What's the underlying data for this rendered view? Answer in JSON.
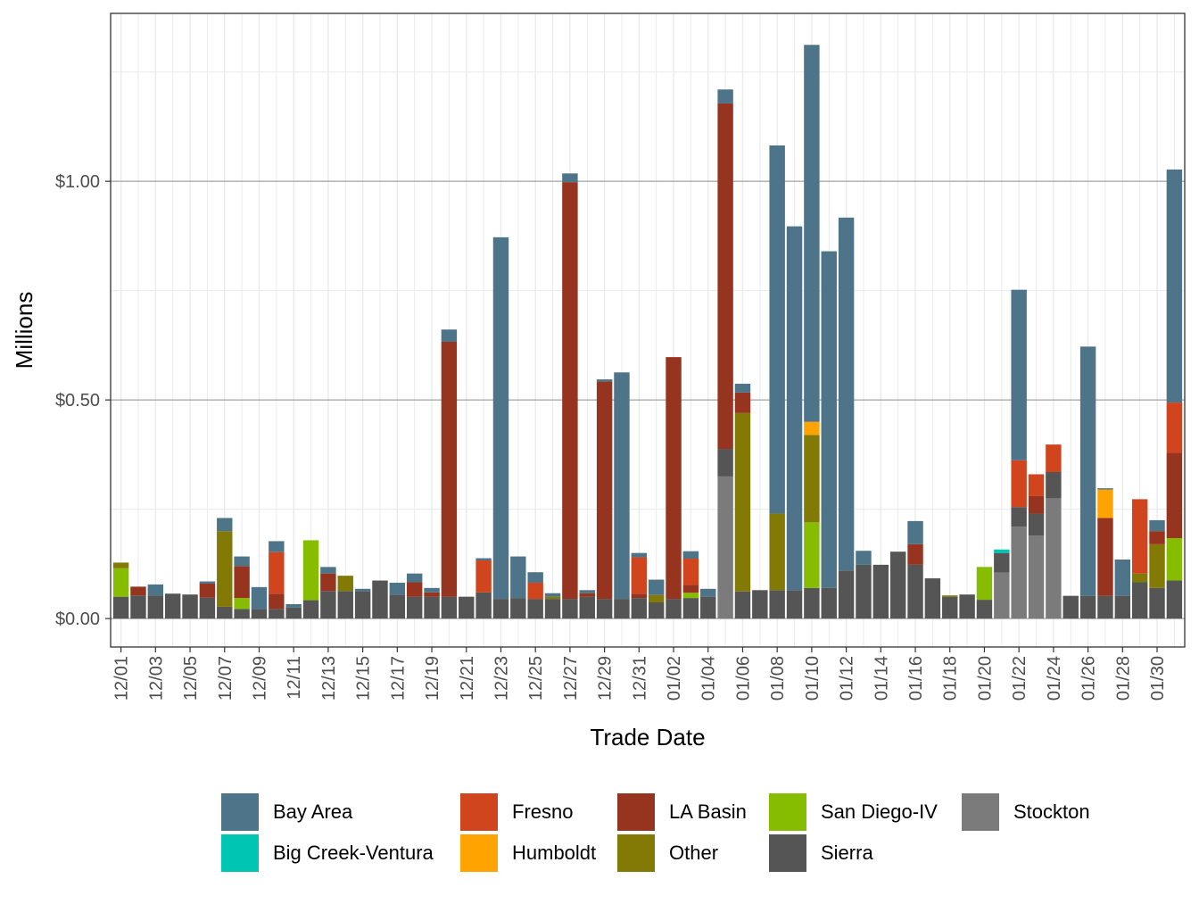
{
  "chart_data": {
    "type": "stacked_bar",
    "x_label": "Trade Date",
    "y_label": "Millions",
    "categories": [
      "12/01",
      null,
      "12/03",
      null,
      "12/05",
      null,
      "12/07",
      null,
      "12/09",
      null,
      "12/11",
      null,
      "12/13",
      null,
      "12/15",
      null,
      "12/17",
      null,
      "12/19",
      null,
      "12/21",
      null,
      "12/23",
      null,
      "12/25",
      null,
      "12/27",
      null,
      "12/29",
      null,
      "12/31",
      null,
      "01/02",
      null,
      "01/04",
      null,
      "01/06",
      null,
      "01/08",
      null,
      "01/10",
      null,
      "01/12",
      null,
      "01/14",
      null,
      "01/16",
      null,
      "01/18",
      null,
      "01/20",
      null,
      "01/22",
      null,
      "01/24",
      null,
      "01/26",
      null,
      "01/28",
      null,
      "01/30",
      null
    ],
    "ylim": [
      -0.065,
      1.384
    ],
    "yticks": [
      {
        "value": 0,
        "label": "$0.00"
      },
      {
        "value": 0.5,
        "label": "$0.50"
      },
      {
        "value": 1,
        "label": "$1.00"
      }
    ],
    "grid": true,
    "legend": "bottom",
    "series": [
      {
        "name": "Bay Area",
        "color": "#4e7489",
        "values": [
          0,
          0,
          0.025,
          0,
          0,
          0.005,
          0.03,
          0.022,
          0.05,
          0.025,
          0.008,
          0,
          0.015,
          0,
          0.005,
          0,
          0.027,
          0.02,
          0.01,
          0.028,
          0,
          0.005,
          0.827,
          0.095,
          0.024,
          0.008,
          0.02,
          0.007,
          0.005,
          0.518,
          0.01,
          0.035,
          0,
          0.017,
          0.018,
          0.032,
          0.02,
          0,
          0.842,
          0.832,
          0.862,
          0.77,
          0.807,
          0.032,
          0,
          0,
          0.053,
          0,
          0,
          0,
          0,
          0,
          0.39,
          0,
          0,
          0,
          0.57,
          0.003,
          0.083,
          0,
          0.025,
          0.533
        ]
      },
      {
        "name": "Big Creek-Ventura",
        "color": "#00c5b2",
        "values": [
          0,
          0,
          0,
          0,
          0,
          0,
          0,
          0,
          0,
          0,
          0,
          0,
          0,
          0,
          0,
          0,
          0,
          0,
          0,
          0,
          0,
          0,
          0,
          0,
          0,
          0,
          0,
          0,
          0,
          0,
          0,
          0,
          0,
          0,
          0,
          0,
          0,
          0,
          0,
          0,
          0,
          0,
          0,
          0,
          0,
          0,
          0,
          0,
          0,
          0,
          0,
          0.008,
          0,
          0,
          0,
          0,
          0,
          0,
          0,
          0,
          0,
          0
        ]
      },
      {
        "name": "Fresno",
        "color": "#d1451e",
        "values": [
          0,
          0,
          0,
          0,
          0,
          0,
          0,
          0,
          0,
          0.095,
          0,
          0,
          0,
          0,
          0,
          0,
          0,
          0,
          0,
          0,
          0,
          0.073,
          0,
          0,
          0.037,
          0,
          0,
          0,
          0,
          0,
          0.083,
          0,
          0,
          0.06,
          0,
          0,
          0,
          0,
          0,
          0,
          0,
          0,
          0,
          0,
          0,
          0,
          0,
          0,
          0,
          0,
          0,
          0,
          0.107,
          0.05,
          0.063,
          0,
          0,
          0,
          0,
          0.17,
          0,
          0.115
        ]
      },
      {
        "name": "Humboldt",
        "color": "#ffa300",
        "values": [
          0,
          0,
          0,
          0,
          0,
          0,
          0,
          0,
          0,
          0,
          0,
          0,
          0,
          0,
          0,
          0,
          0,
          0,
          0,
          0,
          0,
          0,
          0,
          0,
          0,
          0,
          0,
          0,
          0,
          0,
          0,
          0,
          0,
          0,
          0,
          0,
          0,
          0,
          0,
          0,
          0.03,
          0,
          0,
          0,
          0,
          0,
          0,
          0,
          0,
          0,
          0,
          0,
          0,
          0,
          0,
          0,
          0,
          0.065,
          0,
          0,
          0,
          0
        ]
      },
      {
        "name": "LA Basin",
        "color": "#97341f",
        "values": [
          0,
          0.02,
          0,
          0,
          0,
          0.032,
          0,
          0.073,
          0,
          0.035,
          0,
          0,
          0.04,
          0,
          0,
          0,
          0,
          0.033,
          0.01,
          0.583,
          0,
          0,
          0,
          0,
          0,
          0,
          0.953,
          0.008,
          0.497,
          0,
          0.01,
          0,
          0.553,
          0.018,
          0,
          0.79,
          0.047,
          0,
          0,
          0,
          0,
          0,
          0,
          0,
          0,
          0,
          0.047,
          0,
          0,
          0,
          0,
          0,
          0,
          0.04,
          0,
          0,
          0,
          0.178,
          0,
          0,
          0.03,
          0.195
        ]
      },
      {
        "name": "Other",
        "color": "#837a06",
        "values": [
          0.013,
          0,
          0,
          0,
          0,
          0,
          0.173,
          0,
          0,
          0,
          0,
          0,
          0,
          0.035,
          0,
          0,
          0,
          0,
          0,
          0,
          0,
          0,
          0,
          0,
          0,
          0.005,
          0,
          0,
          0,
          0,
          0,
          0.017,
          0,
          0,
          0,
          0,
          0.408,
          0,
          0.175,
          0,
          0.2,
          0,
          0,
          0,
          0,
          0,
          0,
          0,
          0.003,
          0,
          0,
          0,
          0,
          0,
          0,
          0,
          0,
          0,
          0,
          0.02,
          0.1,
          0
        ]
      },
      {
        "name": "San Diego-IV",
        "color": "#87bd00",
        "values": [
          0.065,
          0,
          0,
          0,
          0,
          0,
          0,
          0.025,
          0,
          0,
          0,
          0.137,
          0,
          0,
          0,
          0,
          0,
          0,
          0,
          0,
          0,
          0,
          0,
          0,
          0,
          0,
          0,
          0,
          0,
          0,
          0,
          0,
          0,
          0.012,
          0,
          0,
          0,
          0,
          0,
          0,
          0.15,
          0,
          0,
          0,
          0,
          0,
          0,
          0,
          0,
          0,
          0.075,
          0,
          0,
          0,
          0,
          0,
          0,
          0,
          0,
          0,
          0,
          0.097
        ]
      },
      {
        "name": "Sierra",
        "color": "#555555",
        "values": [
          0.05,
          0.053,
          0.053,
          0.057,
          0.055,
          0.048,
          0.027,
          0.022,
          0.022,
          0.022,
          0.025,
          0.042,
          0.063,
          0.063,
          0.063,
          0.087,
          0.055,
          0.05,
          0.05,
          0.05,
          0.05,
          0.06,
          0.045,
          0.047,
          0.045,
          0.045,
          0.045,
          0.05,
          0.045,
          0.045,
          0.047,
          0.037,
          0.045,
          0.047,
          0.05,
          0.063,
          0.062,
          0.065,
          0.065,
          0.065,
          0.07,
          0.07,
          0.11,
          0.123,
          0.123,
          0.153,
          0.123,
          0.092,
          0.05,
          0.055,
          0.043,
          0.045,
          0.045,
          0.05,
          0.06,
          0.052,
          0.052,
          0.052,
          0.052,
          0.083,
          0.07,
          0.087
        ]
      },
      {
        "name": "Stockton",
        "color": "#7b7b7b",
        "values": [
          0,
          0,
          0,
          0,
          0,
          0,
          0,
          0,
          0,
          0,
          0,
          0,
          0,
          0,
          0,
          0,
          0,
          0,
          0,
          0,
          0,
          0,
          0,
          0,
          0,
          0,
          0,
          0,
          0,
          0,
          0,
          0,
          0,
          0,
          0,
          0.325,
          0,
          0,
          0,
          0,
          0,
          0,
          0,
          0,
          0,
          0,
          0,
          0,
          0,
          0,
          0,
          0.105,
          0.21,
          0.19,
          0.275,
          0,
          0,
          0,
          0,
          0,
          0,
          0
        ]
      }
    ]
  }
}
